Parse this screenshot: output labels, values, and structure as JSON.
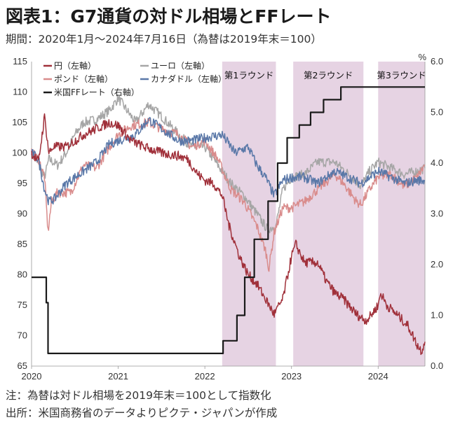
{
  "title": "図表1：G7通貨の対ドル相場とFFレート",
  "subtitle": "期間：2020年1月～2024年7月16日（為替は2019年末＝100）",
  "notes": {
    "note": "注：為替は対ドル相場を2019年末＝100として指数化",
    "source": "出所：米国商務省のデータよりピクテ・ジャパンが作成"
  },
  "colors": {
    "yen": "#a0303a",
    "euro": "#a6a6a6",
    "pound": "#d98c8c",
    "cad": "#5a78a8",
    "ff": "#1a1a1a",
    "band": "#e6d3e3"
  },
  "chart_data": {
    "type": "line",
    "left_axis": {
      "min": 65,
      "max": 115,
      "ticks": [
        "115",
        "110",
        "105",
        "100",
        "95",
        "90",
        "85",
        "80",
        "75",
        "70",
        "65"
      ]
    },
    "right_axis": {
      "unit": "%",
      "min": 0.0,
      "max": 6.0,
      "ticks": [
        "6.0",
        "5.0",
        "4.0",
        "3.0",
        "2.0",
        "1.0",
        "0.0"
      ]
    },
    "x_axis": {
      "ticks": [
        "2020",
        "2021",
        "2022",
        "2023",
        "2024"
      ],
      "range": [
        2020.0,
        2024.54
      ]
    },
    "bands": [
      {
        "label": "第1ラウンド",
        "from": 2022.2,
        "to": 2022.82
      },
      {
        "label": "第2ラウンド",
        "from": 2023.02,
        "to": 2023.83
      },
      {
        "label": "第3ラウンド",
        "from": 2024.0,
        "to": 2024.54
      }
    ],
    "legend": [
      {
        "key": "yen",
        "label": "円（左軸）"
      },
      {
        "key": "euro",
        "label": "ユーロ（左軸）"
      },
      {
        "key": "pound",
        "label": "ポンド（左軸）"
      },
      {
        "key": "cad",
        "label": "カナダドル（左軸）"
      },
      {
        "key": "ff",
        "label": "米国FFレート（右軸）"
      }
    ],
    "series": [
      {
        "key": "yen",
        "name": "円（左軸）",
        "axis": "left",
        "points": [
          [
            2020.0,
            100
          ],
          [
            2020.08,
            98.5
          ],
          [
            2020.15,
            106
          ],
          [
            2020.2,
            100
          ],
          [
            2020.25,
            101
          ],
          [
            2020.4,
            101
          ],
          [
            2020.6,
            103
          ],
          [
            2020.75,
            104
          ],
          [
            2020.9,
            105
          ],
          [
            2021.0,
            104.5
          ],
          [
            2021.15,
            102
          ],
          [
            2021.3,
            101
          ],
          [
            2021.5,
            100
          ],
          [
            2021.7,
            99.5
          ],
          [
            2021.8,
            99
          ],
          [
            2021.92,
            96.5
          ],
          [
            2022.0,
            95.5
          ],
          [
            2022.1,
            95
          ],
          [
            2022.2,
            93
          ],
          [
            2022.28,
            88
          ],
          [
            2022.4,
            83
          ],
          [
            2022.5,
            80
          ],
          [
            2022.6,
            78.5
          ],
          [
            2022.7,
            76
          ],
          [
            2022.8,
            73.5
          ],
          [
            2022.9,
            76
          ],
          [
            2023.0,
            83
          ],
          [
            2023.05,
            85
          ],
          [
            2023.15,
            82
          ],
          [
            2023.3,
            82
          ],
          [
            2023.4,
            79
          ],
          [
            2023.5,
            77
          ],
          [
            2023.6,
            76
          ],
          [
            2023.75,
            73.5
          ],
          [
            2023.85,
            72.5
          ],
          [
            2023.9,
            73
          ],
          [
            2024.0,
            75
          ],
          [
            2024.03,
            77
          ],
          [
            2024.1,
            75
          ],
          [
            2024.25,
            73
          ],
          [
            2024.35,
            71.5
          ],
          [
            2024.45,
            68.5
          ],
          [
            2024.5,
            67.5
          ],
          [
            2024.54,
            69
          ]
        ]
      },
      {
        "key": "euro",
        "name": "ユーロ（左軸）",
        "axis": "left",
        "points": [
          [
            2020.0,
            100
          ],
          [
            2020.08,
            98
          ],
          [
            2020.15,
            96
          ],
          [
            2020.2,
            99
          ],
          [
            2020.3,
            98
          ],
          [
            2020.4,
            100
          ],
          [
            2020.5,
            103
          ],
          [
            2020.6,
            105
          ],
          [
            2020.75,
            105.5
          ],
          [
            2020.9,
            107
          ],
          [
            2021.0,
            109
          ],
          [
            2021.1,
            107
          ],
          [
            2021.2,
            105
          ],
          [
            2021.35,
            108
          ],
          [
            2021.5,
            106
          ],
          [
            2021.7,
            103
          ],
          [
            2021.85,
            101
          ],
          [
            2022.0,
            101
          ],
          [
            2022.15,
            98
          ],
          [
            2022.3,
            95
          ],
          [
            2022.45,
            93
          ],
          [
            2022.6,
            90
          ],
          [
            2022.72,
            87.5
          ],
          [
            2022.82,
            88
          ],
          [
            2022.9,
            94
          ],
          [
            2023.0,
            96
          ],
          [
            2023.15,
            96.5
          ],
          [
            2023.3,
            98.5
          ],
          [
            2023.5,
            98.5
          ],
          [
            2023.7,
            96
          ],
          [
            2023.8,
            94.5
          ],
          [
            2023.9,
            97
          ],
          [
            2024.0,
            98.5
          ],
          [
            2024.15,
            97.5
          ],
          [
            2024.3,
            96.5
          ],
          [
            2024.45,
            97
          ],
          [
            2024.54,
            97.5
          ]
        ]
      },
      {
        "key": "pound",
        "name": "ポンド（左軸）",
        "axis": "left",
        "points": [
          [
            2020.0,
            100
          ],
          [
            2020.08,
            99
          ],
          [
            2020.15,
            96
          ],
          [
            2020.19,
            87
          ],
          [
            2020.23,
            92
          ],
          [
            2020.3,
            93.5
          ],
          [
            2020.45,
            93.5
          ],
          [
            2020.6,
            98
          ],
          [
            2020.75,
            97.5
          ],
          [
            2020.9,
            101
          ],
          [
            2021.0,
            103
          ],
          [
            2021.15,
            104.5
          ],
          [
            2021.35,
            105
          ],
          [
            2021.5,
            104
          ],
          [
            2021.7,
            103
          ],
          [
            2021.85,
            101
          ],
          [
            2022.0,
            102
          ],
          [
            2022.15,
            99
          ],
          [
            2022.3,
            94
          ],
          [
            2022.45,
            92
          ],
          [
            2022.6,
            88
          ],
          [
            2022.7,
            84
          ],
          [
            2022.74,
            81
          ],
          [
            2022.8,
            87
          ],
          [
            2022.9,
            91
          ],
          [
            2023.0,
            91
          ],
          [
            2023.15,
            92
          ],
          [
            2023.3,
            94
          ],
          [
            2023.5,
            96.5
          ],
          [
            2023.6,
            95
          ],
          [
            2023.75,
            92
          ],
          [
            2023.8,
            91.5
          ],
          [
            2023.9,
            94
          ],
          [
            2024.0,
            96
          ],
          [
            2024.15,
            96.5
          ],
          [
            2024.3,
            94.5
          ],
          [
            2024.45,
            96
          ],
          [
            2024.54,
            98
          ]
        ]
      },
      {
        "key": "cad",
        "name": "カナダドル（左軸）",
        "axis": "left",
        "points": [
          [
            2020.0,
            100
          ],
          [
            2020.08,
            99
          ],
          [
            2020.15,
            94
          ],
          [
            2020.2,
            92
          ],
          [
            2020.27,
            92.5
          ],
          [
            2020.4,
            95
          ],
          [
            2020.6,
            97
          ],
          [
            2020.75,
            98.5
          ],
          [
            2020.9,
            101.5
          ],
          [
            2021.0,
            102
          ],
          [
            2021.2,
            103
          ],
          [
            2021.35,
            105.5
          ],
          [
            2021.5,
            104
          ],
          [
            2021.7,
            102
          ],
          [
            2021.85,
            102
          ],
          [
            2022.0,
            102.5
          ],
          [
            2022.2,
            103
          ],
          [
            2022.35,
            100
          ],
          [
            2022.5,
            101
          ],
          [
            2022.6,
            98
          ],
          [
            2022.7,
            96
          ],
          [
            2022.8,
            93
          ],
          [
            2022.9,
            95.5
          ],
          [
            2023.0,
            96
          ],
          [
            2023.15,
            96
          ],
          [
            2023.3,
            95
          ],
          [
            2023.5,
            97
          ],
          [
            2023.65,
            96
          ],
          [
            2023.8,
            95
          ],
          [
            2023.9,
            96
          ],
          [
            2024.0,
            97
          ],
          [
            2024.15,
            96
          ],
          [
            2024.3,
            95
          ],
          [
            2024.45,
            95.5
          ],
          [
            2024.54,
            95.5
          ]
        ]
      },
      {
        "key": "ff",
        "name": "米国FFレート（右軸）",
        "axis": "right",
        "step": true,
        "points": [
          [
            2020.0,
            1.75
          ],
          [
            2020.17,
            1.25
          ],
          [
            2020.19,
            0.25
          ],
          [
            2022.21,
            0.5
          ],
          [
            2022.37,
            1.0
          ],
          [
            2022.46,
            1.75
          ],
          [
            2022.57,
            2.5
          ],
          [
            2022.73,
            3.25
          ],
          [
            2022.84,
            4.0
          ],
          [
            2022.95,
            4.5
          ],
          [
            2023.09,
            4.75
          ],
          [
            2023.22,
            5.0
          ],
          [
            2023.37,
            5.25
          ],
          [
            2023.57,
            5.5
          ],
          [
            2024.54,
            5.5
          ]
        ]
      }
    ]
  }
}
